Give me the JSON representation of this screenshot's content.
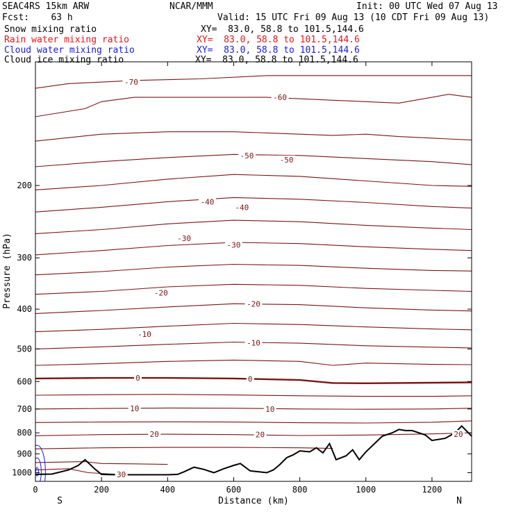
{
  "header": {
    "title": "SEAC4RS 15km ARW",
    "fcst": "Fcst:    63 h",
    "center": "NCAR/MMM",
    "init": "Init: 00 UTC Wed 07 Aug 13",
    "valid": "Valid: 15 UTC Fri 09 Aug 13 (10 CDT Fri 09 Aug 13)",
    "fields": [
      {
        "name": "Snow mixing ratio",
        "xy": "XY=  83.0, 58.8 to 101.5,144.6",
        "color": "#000000"
      },
      {
        "name": "Rain water mixing ratio",
        "xy": "XY=  83.0, 58.8 to 101.5,144.6",
        "color": "#e8141a"
      },
      {
        "name": "Cloud water mixing ratio",
        "xy": "XY=  83.0, 58.8 to 101.5,144.6",
        "color": "#1a1ae0"
      },
      {
        "name": "Cloud ice mixing ratio",
        "xy": "XY=  83.0, 58.8 to 101.5,144.6",
        "color": "#000000"
      }
    ]
  },
  "colors": {
    "isotherm": "#7a1414",
    "terrain": "#000000",
    "cloud": "#1a1ae0"
  },
  "chart_data": {
    "type": "line",
    "xlabel": "Distance (km)",
    "ylabel": "Pressure (hPa)",
    "xlim": [
      0,
      1320
    ],
    "ylim": [
      1050,
      100
    ],
    "y_scale": "log",
    "x_ticks": [
      0,
      200,
      400,
      600,
      800,
      1000,
      1200
    ],
    "y_ticks": [
      200,
      300,
      400,
      500,
      600,
      700,
      800,
      900,
      1000
    ],
    "x_end_labels": {
      "left": "S",
      "right": "N"
    },
    "isotherms": [
      {
        "pts": [
          [
            0,
            116
          ],
          [
            100,
            113
          ],
          [
            300,
            111
          ],
          [
            500,
            110
          ],
          [
            700,
            108
          ],
          [
            900,
            108
          ],
          [
            1100,
            108
          ],
          [
            1320,
            108
          ]
        ]
      },
      {
        "pts": [
          [
            0,
            136
          ],
          [
            150,
            130
          ],
          [
            200,
            125
          ],
          [
            300,
            122
          ],
          [
            500,
            122
          ],
          [
            700,
            122
          ],
          [
            900,
            124
          ],
          [
            1100,
            126
          ],
          [
            1250,
            120
          ],
          [
            1320,
            122
          ]
        ]
      },
      {
        "pts": [
          [
            0,
            156
          ],
          [
            200,
            150
          ],
          [
            400,
            148
          ],
          [
            600,
            148
          ],
          [
            800,
            150
          ],
          [
            900,
            151
          ],
          [
            1000,
            150
          ],
          [
            1100,
            152
          ],
          [
            1320,
            155
          ]
        ]
      },
      {
        "pts": [
          [
            0,
            180
          ],
          [
            200,
            175
          ],
          [
            400,
            171
          ],
          [
            600,
            168
          ],
          [
            800,
            169
          ],
          [
            1000,
            172
          ],
          [
            1200,
            175
          ],
          [
            1320,
            178
          ]
        ]
      },
      {
        "pts": [
          [
            0,
            205
          ],
          [
            200,
            200
          ],
          [
            400,
            193
          ],
          [
            600,
            188
          ],
          [
            800,
            190
          ],
          [
            1000,
            195
          ],
          [
            1200,
            200
          ],
          [
            1320,
            201
          ]
        ]
      },
      {
        "pts": [
          [
            0,
            232
          ],
          [
            200,
            226
          ],
          [
            400,
            219
          ],
          [
            600,
            214
          ],
          [
            800,
            216
          ],
          [
            1000,
            220
          ],
          [
            1200,
            225
          ],
          [
            1320,
            227
          ]
        ]
      },
      {
        "pts": [
          [
            0,
            262
          ],
          [
            200,
            256
          ],
          [
            400,
            248
          ],
          [
            600,
            243
          ],
          [
            800,
            245
          ],
          [
            1000,
            250
          ],
          [
            1200,
            254
          ],
          [
            1320,
            256
          ]
        ]
      },
      {
        "pts": [
          [
            0,
            295
          ],
          [
            200,
            288
          ],
          [
            400,
            280
          ],
          [
            600,
            275
          ],
          [
            800,
            277
          ],
          [
            1000,
            282
          ],
          [
            1200,
            286
          ],
          [
            1320,
            288
          ]
        ]
      },
      {
        "pts": [
          [
            0,
            330
          ],
          [
            200,
            324
          ],
          [
            400,
            316
          ],
          [
            600,
            311
          ],
          [
            800,
            313
          ],
          [
            1000,
            318
          ],
          [
            1200,
            322
          ],
          [
            1320,
            323
          ]
        ]
      },
      {
        "pts": [
          [
            0,
            368
          ],
          [
            200,
            362
          ],
          [
            400,
            353
          ],
          [
            600,
            348
          ],
          [
            800,
            350
          ],
          [
            1000,
            356
          ],
          [
            1200,
            360
          ],
          [
            1320,
            362
          ]
        ]
      },
      {
        "pts": [
          [
            0,
            410
          ],
          [
            200,
            403
          ],
          [
            400,
            395
          ],
          [
            600,
            388
          ],
          [
            800,
            390
          ],
          [
            1000,
            397
          ],
          [
            1200,
            402
          ],
          [
            1320,
            404
          ]
        ]
      },
      {
        "pts": [
          [
            0,
            454
          ],
          [
            200,
            448
          ],
          [
            400,
            440
          ],
          [
            600,
            433
          ],
          [
            800,
            436
          ],
          [
            1000,
            442
          ],
          [
            1200,
            447
          ],
          [
            1320,
            449
          ]
        ]
      },
      {
        "pts": [
          [
            0,
            500
          ],
          [
            200,
            494
          ],
          [
            400,
            487
          ],
          [
            600,
            481
          ],
          [
            800,
            484
          ],
          [
            1000,
            491
          ],
          [
            1200,
            495
          ],
          [
            1320,
            497
          ]
        ]
      },
      {
        "pts": [
          [
            0,
            548
          ],
          [
            200,
            543
          ],
          [
            400,
            536
          ],
          [
            600,
            532
          ],
          [
            800,
            536
          ],
          [
            900,
            548
          ],
          [
            1000,
            541
          ],
          [
            1200,
            545
          ],
          [
            1320,
            546
          ]
        ]
      },
      {
        "pts": [
          [
            0,
            590
          ],
          [
            200,
            588
          ],
          [
            400,
            588
          ],
          [
            600,
            590
          ],
          [
            800,
            595
          ],
          [
            900,
            605
          ],
          [
            1000,
            606
          ],
          [
            1200,
            604
          ],
          [
            1320,
            603
          ]
        ],
        "bold": true
      },
      {
        "pts": [
          [
            0,
            648
          ],
          [
            200,
            646
          ],
          [
            400,
            645
          ],
          [
            600,
            647
          ],
          [
            800,
            650
          ],
          [
            1000,
            652
          ],
          [
            1200,
            652
          ],
          [
            1320,
            650
          ]
        ]
      },
      {
        "pts": [
          [
            0,
            700
          ],
          [
            200,
            698
          ],
          [
            400,
            696
          ],
          [
            600,
            697
          ],
          [
            800,
            700
          ],
          [
            1000,
            701
          ],
          [
            1200,
            700
          ],
          [
            1320,
            697
          ]
        ]
      },
      {
        "pts": [
          [
            0,
            755
          ],
          [
            200,
            753
          ],
          [
            400,
            752
          ],
          [
            600,
            753
          ],
          [
            800,
            756
          ],
          [
            1000,
            757
          ],
          [
            1200,
            754
          ],
          [
            1320,
            748
          ]
        ]
      },
      {
        "pts": [
          [
            0,
            813
          ],
          [
            200,
            808
          ],
          [
            400,
            806
          ],
          [
            600,
            808
          ],
          [
            800,
            812
          ],
          [
            1000,
            810
          ],
          [
            1200,
            805
          ],
          [
            1320,
            800
          ]
        ]
      },
      {
        "pts": [
          [
            0,
            875
          ],
          [
            200,
            870
          ],
          [
            400,
            868
          ],
          [
            600,
            868
          ],
          [
            800,
            870
          ],
          [
            900,
            873
          ]
        ]
      },
      {
        "pts": [
          [
            0,
            945
          ],
          [
            150,
            940
          ],
          [
            200,
            950
          ],
          [
            300,
            952
          ],
          [
            400,
            955
          ]
        ]
      },
      {
        "pts": [
          [
            0,
            985
          ],
          [
            100,
            978
          ],
          [
            160,
            1000
          ],
          [
            250,
            1010
          ],
          [
            330,
            1012
          ]
        ]
      }
    ],
    "contour_labels": [
      {
        "text": "-70",
        "x": 290,
        "p": 112
      },
      {
        "text": "-60",
        "x": 740,
        "p": 122
      },
      {
        "text": "-50",
        "x": 640,
        "p": 169
      },
      {
        "text": "-50",
        "x": 760,
        "p": 173
      },
      {
        "text": "-40",
        "x": 520,
        "p": 219
      },
      {
        "text": "-40",
        "x": 625,
        "p": 226
      },
      {
        "text": "-30",
        "x": 450,
        "p": 269
      },
      {
        "text": "-30",
        "x": 600,
        "p": 279
      },
      {
        "text": "-20",
        "x": 380,
        "p": 365
      },
      {
        "text": "-20",
        "x": 660,
        "p": 388
      },
      {
        "text": "-10",
        "x": 330,
        "p": 460
      },
      {
        "text": "-10",
        "x": 660,
        "p": 483
      },
      {
        "text": "0",
        "x": 310,
        "p": 588
      },
      {
        "text": "0",
        "x": 650,
        "p": 591
      },
      {
        "text": "10",
        "x": 300,
        "p": 698
      },
      {
        "text": "10",
        "x": 710,
        "p": 700
      },
      {
        "text": "20",
        "x": 360,
        "p": 806
      },
      {
        "text": "20",
        "x": 680,
        "p": 808
      },
      {
        "text": "20",
        "x": 1280,
        "p": 806
      },
      {
        "text": "30",
        "x": 260,
        "p": 1010
      }
    ],
    "terrain": [
      [
        0,
        1010
      ],
      [
        50,
        1008
      ],
      [
        100,
        985
      ],
      [
        130,
        960
      ],
      [
        150,
        930
      ],
      [
        180,
        980
      ],
      [
        200,
        1010
      ],
      [
        250,
        1012
      ],
      [
        300,
        1012
      ],
      [
        400,
        1012
      ],
      [
        430,
        1010
      ],
      [
        450,
        995
      ],
      [
        480,
        970
      ],
      [
        510,
        982
      ],
      [
        540,
        1000
      ],
      [
        570,
        978
      ],
      [
        600,
        960
      ],
      [
        620,
        950
      ],
      [
        650,
        990
      ],
      [
        700,
        1000
      ],
      [
        720,
        985
      ],
      [
        740,
        955
      ],
      [
        760,
        920
      ],
      [
        780,
        905
      ],
      [
        800,
        885
      ],
      [
        830,
        890
      ],
      [
        850,
        870
      ],
      [
        870,
        895
      ],
      [
        890,
        850
      ],
      [
        910,
        930
      ],
      [
        940,
        910
      ],
      [
        960,
        880
      ],
      [
        980,
        930
      ],
      [
        1000,
        890
      ],
      [
        1050,
        815
      ],
      [
        1080,
        800
      ],
      [
        1100,
        785
      ],
      [
        1120,
        790
      ],
      [
        1140,
        790
      ],
      [
        1180,
        810
      ],
      [
        1200,
        835
      ],
      [
        1240,
        825
      ],
      [
        1270,
        800
      ],
      [
        1290,
        770
      ],
      [
        1320,
        815
      ]
    ],
    "cloud_rings": [
      {
        "x": 5,
        "p": 995,
        "rx": 12,
        "ry": 38
      },
      {
        "x": 5,
        "p": 995,
        "rx": 6,
        "ry": 20
      },
      {
        "x": 5,
        "p": 995,
        "rx": 2,
        "ry": 6
      }
    ]
  }
}
